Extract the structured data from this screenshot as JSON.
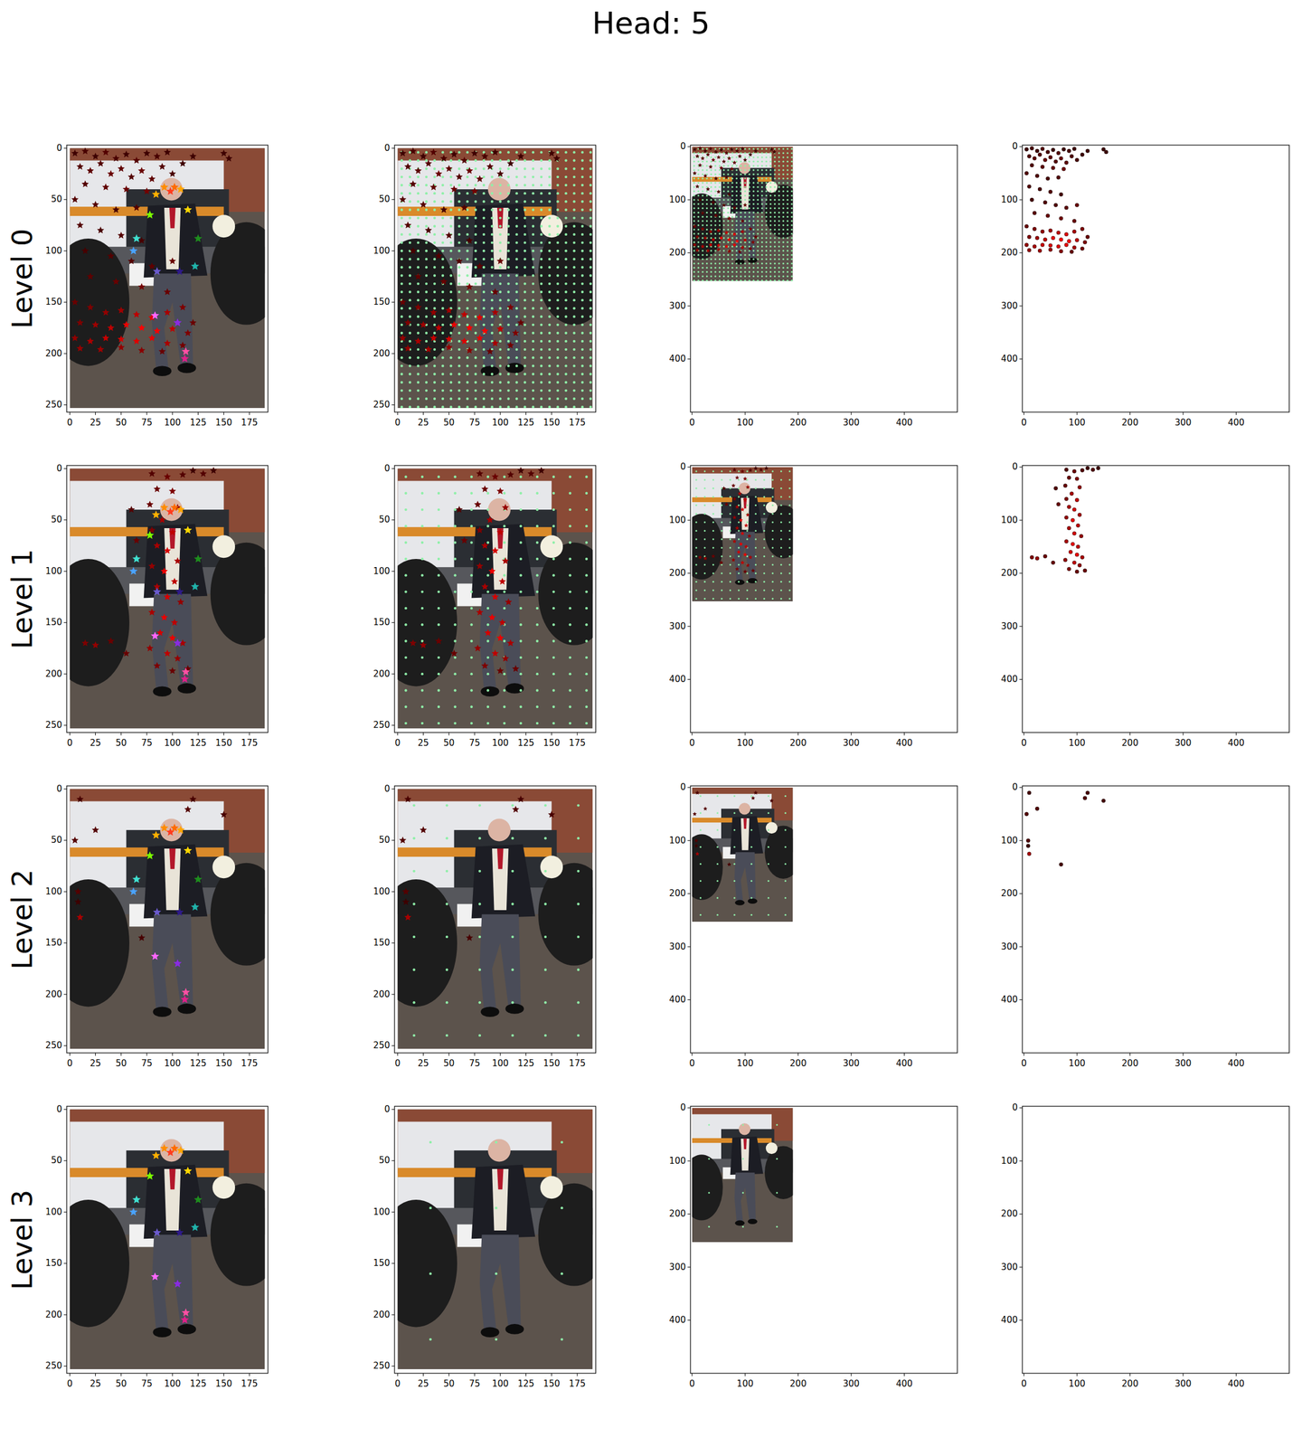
{
  "chart_data": {
    "type": "scatter",
    "title": "Head: 5",
    "image_size": [
      190,
      253
    ],
    "image_axes": {
      "xlim": [
        -3,
        193
      ],
      "ylim": [
        257,
        -3
      ],
      "xticks": [
        0,
        25,
        50,
        75,
        100,
        125,
        150,
        175
      ],
      "yticks": [
        0,
        50,
        100,
        150,
        200,
        250
      ]
    },
    "canvas_axes": {
      "xlim": [
        -3,
        500
      ],
      "ylim": [
        500,
        -3
      ],
      "xticks": [
        0,
        100,
        200,
        300,
        400
      ],
      "yticks": [
        0,
        100,
        200,
        300,
        400
      ]
    },
    "keypoints": {
      "x": [
        98,
        102,
        92,
        108,
        84,
        115,
        78,
        125,
        65,
        122,
        62,
        85,
        107,
        83,
        105,
        113,
        112
      ],
      "y": [
        42,
        38,
        38,
        40,
        45,
        60,
        65,
        88,
        88,
        115,
        100,
        120,
        120,
        163,
        170,
        198,
        205
      ],
      "colors": [
        "#ff3b1f",
        "#ff6a00",
        "#ff8c00",
        "#ffa500",
        "#ffb000",
        "#ffd700",
        "#7cfc00",
        "#1e8c1e",
        "#40e0d0",
        "#20b2aa",
        "#4aa3ff",
        "#6a5acd",
        "#2e1a8a",
        "#ff66ff",
        "#8a2be2",
        "#ff4fa3",
        "#e0208a"
      ]
    },
    "levels": [
      {
        "label": "Level 0",
        "x": [
          5,
          15,
          25,
          35,
          45,
          55,
          65,
          75,
          85,
          95,
          150,
          155,
          10,
          20,
          30,
          40,
          50,
          60,
          70,
          80,
          90,
          100,
          110,
          120,
          15,
          35,
          55,
          75,
          5,
          25,
          45,
          65,
          10,
          30,
          50,
          70,
          15,
          40,
          60,
          80,
          100,
          20,
          45,
          70,
          95,
          5,
          20,
          35,
          50,
          65,
          80,
          95,
          110,
          120,
          10,
          25,
          40,
          55,
          70,
          85,
          100,
          115,
          5,
          20,
          35,
          50,
          65,
          80,
          95,
          110,
          10,
          30,
          50,
          70,
          90
        ],
        "y": [
          5,
          3,
          8,
          4,
          10,
          6,
          12,
          5,
          8,
          4,
          5,
          10,
          18,
          22,
          15,
          25,
          20,
          28,
          22,
          30,
          18,
          25,
          15,
          8,
          35,
          38,
          40,
          42,
          50,
          55,
          60,
          58,
          75,
          80,
          85,
          90,
          100,
          105,
          110,
          115,
          110,
          125,
          130,
          135,
          140,
          150,
          155,
          160,
          158,
          162,
          165,
          160,
          155,
          170,
          170,
          172,
          175,
          172,
          175,
          178,
          176,
          180,
          185,
          188,
          185,
          186,
          188,
          185,
          190,
          192,
          195,
          196,
          194,
          197,
          198
        ],
        "weights": [
          0.1,
          0.15,
          0.1,
          0.2,
          0.15,
          0.1,
          0.2,
          0.1,
          0.15,
          0.1,
          0.1,
          0.1,
          0.2,
          0.25,
          0.2,
          0.3,
          0.25,
          0.2,
          0.3,
          0.25,
          0.2,
          0.15,
          0.1,
          0.1,
          0.2,
          0.25,
          0.3,
          0.35,
          0.2,
          0.2,
          0.15,
          0.2,
          0.2,
          0.15,
          0.2,
          0.15,
          0.15,
          0.2,
          0.2,
          0.25,
          0.3,
          0.25,
          0.3,
          0.35,
          0.3,
          0.3,
          0.4,
          0.5,
          0.55,
          0.7,
          0.85,
          0.6,
          0.4,
          0.3,
          0.4,
          0.55,
          0.7,
          0.9,
          1.0,
          0.95,
          0.7,
          0.4,
          0.5,
          0.6,
          0.75,
          0.8,
          0.85,
          0.9,
          0.6,
          0.35,
          0.5,
          0.55,
          0.5,
          0.45,
          0.3
        ],
        "grid_x": [
          4,
          12,
          20,
          28,
          36,
          44,
          52,
          60,
          68,
          76,
          84,
          92,
          100,
          108,
          116,
          124,
          132,
          140,
          148,
          156,
          164,
          172,
          180,
          188
        ],
        "grid_y": [
          4,
          12,
          20,
          28,
          36,
          44,
          52,
          60,
          68,
          76,
          84,
          92,
          100,
          108,
          116,
          124,
          132,
          140,
          148,
          156,
          164,
          172,
          180,
          188,
          196,
          204,
          212,
          220,
          228,
          236,
          244,
          252
        ]
      },
      {
        "label": "Level 1",
        "x": [
          80,
          95,
          110,
          120,
          85,
          100,
          78,
          105,
          90,
          80,
          100,
          85,
          95,
          105,
          80,
          92,
          102,
          85,
          95,
          108,
          80,
          92,
          102,
          88,
          100,
          110,
          78,
          95,
          105,
          85,
          100,
          115,
          15,
          25,
          40,
          55,
          65,
          130,
          140,
          60
        ],
        "y": [
          5,
          8,
          6,
          2,
          20,
          22,
          35,
          38,
          50,
          60,
          62,
          75,
          80,
          90,
          95,
          100,
          110,
          115,
          125,
          130,
          140,
          145,
          150,
          160,
          165,
          170,
          175,
          180,
          185,
          192,
          197,
          195,
          170,
          172,
          168,
          180,
          70,
          5,
          2,
          40
        ],
        "weights": [
          0.2,
          0.3,
          0.2,
          0.1,
          0.3,
          0.4,
          0.3,
          0.5,
          0.6,
          0.4,
          0.7,
          0.6,
          0.8,
          0.6,
          0.5,
          0.9,
          0.7,
          0.6,
          0.8,
          0.5,
          0.6,
          0.9,
          0.7,
          0.8,
          0.9,
          0.6,
          0.5,
          0.7,
          0.5,
          0.4,
          0.3,
          0.3,
          0.4,
          0.5,
          0.3,
          0.3,
          0.3,
          0.2,
          0.1,
          0.2
        ],
        "grid_x": [
          8,
          24,
          40,
          56,
          72,
          88,
          104,
          120,
          136,
          152,
          168,
          184
        ],
        "grid_y": [
          8,
          24,
          40,
          56,
          72,
          88,
          104,
          120,
          136,
          152,
          168,
          184,
          200,
          216,
          232,
          248
        ]
      },
      {
        "label": "Level 2",
        "x": [
          5,
          10,
          25,
          115,
          120,
          70,
          10,
          8,
          150,
          8
        ],
        "y": [
          50,
          10,
          40,
          20,
          10,
          145,
          125,
          100,
          25,
          110
        ],
        "weights": [
          0.2,
          0.15,
          0.2,
          0.2,
          0.15,
          0.15,
          0.6,
          0.2,
          0.15,
          0.1
        ],
        "grid_x": [
          16,
          48,
          80,
          112,
          144,
          176
        ],
        "grid_y": [
          16,
          48,
          80,
          112,
          144,
          176,
          208,
          240
        ]
      },
      {
        "label": "Level 3",
        "x": [],
        "y": [],
        "weights": [],
        "grid_x": [
          32,
          96,
          160
        ],
        "grid_y": [
          32,
          96,
          160,
          224
        ]
      }
    ]
  }
}
